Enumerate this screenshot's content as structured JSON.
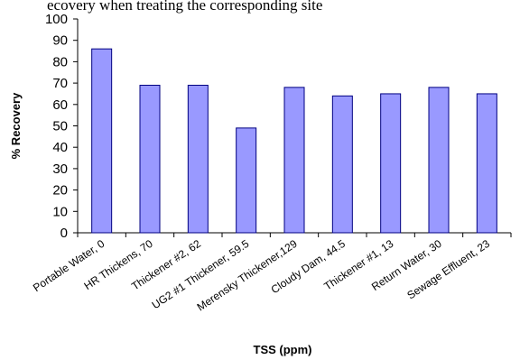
{
  "caption": "ecovery when treating the corresponding site",
  "chart_data": {
    "type": "bar",
    "categories": [
      "Portable Water, 0",
      "HR Thickens, 70",
      "Thickener #2, 62",
      "UG2 #1 Thickener, 59.5",
      "Merensky Thickener,129",
      "Cloudy Dam, 44.5",
      "Thickener #1, 13",
      "Return Water, 30",
      "Sewage Effluent, 23"
    ],
    "values": [
      86,
      69,
      69,
      49,
      68,
      64,
      65,
      68,
      65
    ],
    "xlabel": "TSS (ppm)",
    "ylabel": "% Recovery",
    "ylim": [
      0,
      100
    ],
    "yticks": [
      0,
      10,
      20,
      30,
      40,
      50,
      60,
      70,
      80,
      90,
      100
    ],
    "grid": false,
    "legend": "none",
    "bar_color": "#9999ff",
    "bar_edge": "#000080"
  }
}
